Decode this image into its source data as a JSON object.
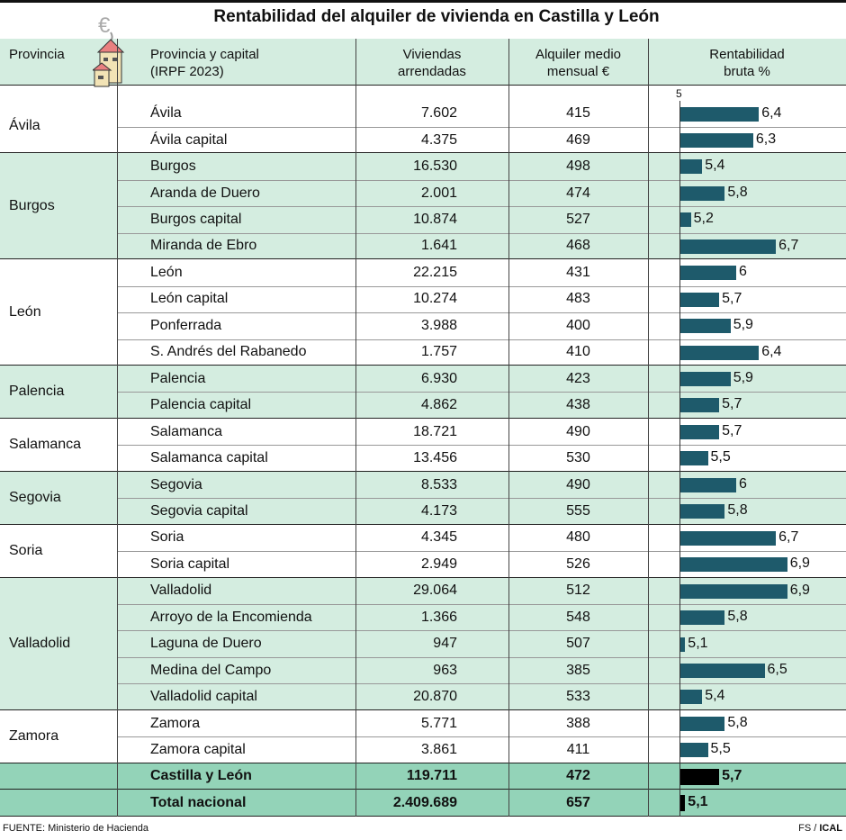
{
  "title": "Rentabilidad del alquiler de vivienda en Castilla y León",
  "headers": {
    "provincia": "Provincia",
    "nombre": "Provincia y capital\n(IRPF 2023)",
    "viviendas": "Viviendas\narrendadas",
    "alquiler": "Alquiler medio\nmensual €",
    "rentabilidad": "Rentabilidad\nbruta %"
  },
  "axis_label": "5",
  "colors": {
    "bar": "#1e5a6b",
    "total_bar": "#000000",
    "group_alt": "#d4ede0",
    "total_bg": "#93d3b8",
    "header_bg": "#d4ede0"
  },
  "chart_data": {
    "type": "table",
    "bar_column": "rentabilidad",
    "bar_baseline": 5,
    "groups": [
      {
        "provincia": "Ávila",
        "rows": [
          [
            "Ávila",
            "7.602",
            "415",
            "6,4"
          ],
          [
            "Ávila capital",
            "4.375",
            "469",
            "6,3"
          ]
        ]
      },
      {
        "provincia": "Burgos",
        "rows": [
          [
            "Burgos",
            "16.530",
            "498",
            "5,4"
          ],
          [
            "Aranda de Duero",
            "2.001",
            "474",
            "5,8"
          ],
          [
            "Burgos capital",
            "10.874",
            "527",
            "5,2"
          ],
          [
            "Miranda de Ebro",
            "1.641",
            "468",
            "6,7"
          ]
        ]
      },
      {
        "provincia": "León",
        "rows": [
          [
            "León",
            "22.215",
            "431",
            "6"
          ],
          [
            "León capital",
            "10.274",
            "483",
            "5,7"
          ],
          [
            "Ponferrada",
            "3.988",
            "400",
            "5,9"
          ],
          [
            "S. Andrés del Rabanedo",
            "1.757",
            "410",
            "6,4"
          ]
        ]
      },
      {
        "provincia": "Palencia",
        "rows": [
          [
            "Palencia",
            "6.930",
            "423",
            "5,9"
          ],
          [
            "Palencia capital",
            "4.862",
            "438",
            "5,7"
          ]
        ]
      },
      {
        "provincia": "Salamanca",
        "rows": [
          [
            "Salamanca",
            "18.721",
            "490",
            "5,7"
          ],
          [
            "Salamanca capital",
            "13.456",
            "530",
            "5,5"
          ]
        ]
      },
      {
        "provincia": "Segovia",
        "rows": [
          [
            "Segovia",
            "8.533",
            "490",
            "6"
          ],
          [
            "Segovia capital",
            "4.173",
            "555",
            "5,8"
          ]
        ]
      },
      {
        "provincia": "Soria",
        "rows": [
          [
            "Soria",
            "4.345",
            "480",
            "6,7"
          ],
          [
            "Soria capital",
            "2.949",
            "526",
            "6,9"
          ]
        ]
      },
      {
        "provincia": "Valladolid",
        "rows": [
          [
            "Valladolid",
            "29.064",
            "512",
            "6,9"
          ],
          [
            "Arroyo de la Encomienda",
            "1.366",
            "548",
            "5,8"
          ],
          [
            "Laguna de Duero",
            "947",
            "507",
            "5,1"
          ],
          [
            "Medina del Campo",
            "963",
            "385",
            "6,5"
          ],
          [
            "Valladolid capital",
            "20.870",
            "533",
            "5,4"
          ]
        ]
      },
      {
        "provincia": "Zamora",
        "rows": [
          [
            "Zamora",
            "5.771",
            "388",
            "5,8"
          ],
          [
            "Zamora capital",
            "3.861",
            "411",
            "5,5"
          ]
        ]
      }
    ],
    "totals": [
      [
        "Castilla y León",
        "119.711",
        "472",
        "5,7"
      ],
      [
        "Total nacional",
        "2.409.689",
        "657",
        "5,1"
      ]
    ]
  },
  "footer": {
    "source": "FUENTE: Ministerio de Hacienda",
    "credit_fs": "FS / ",
    "credit_ical": "ICAL"
  }
}
